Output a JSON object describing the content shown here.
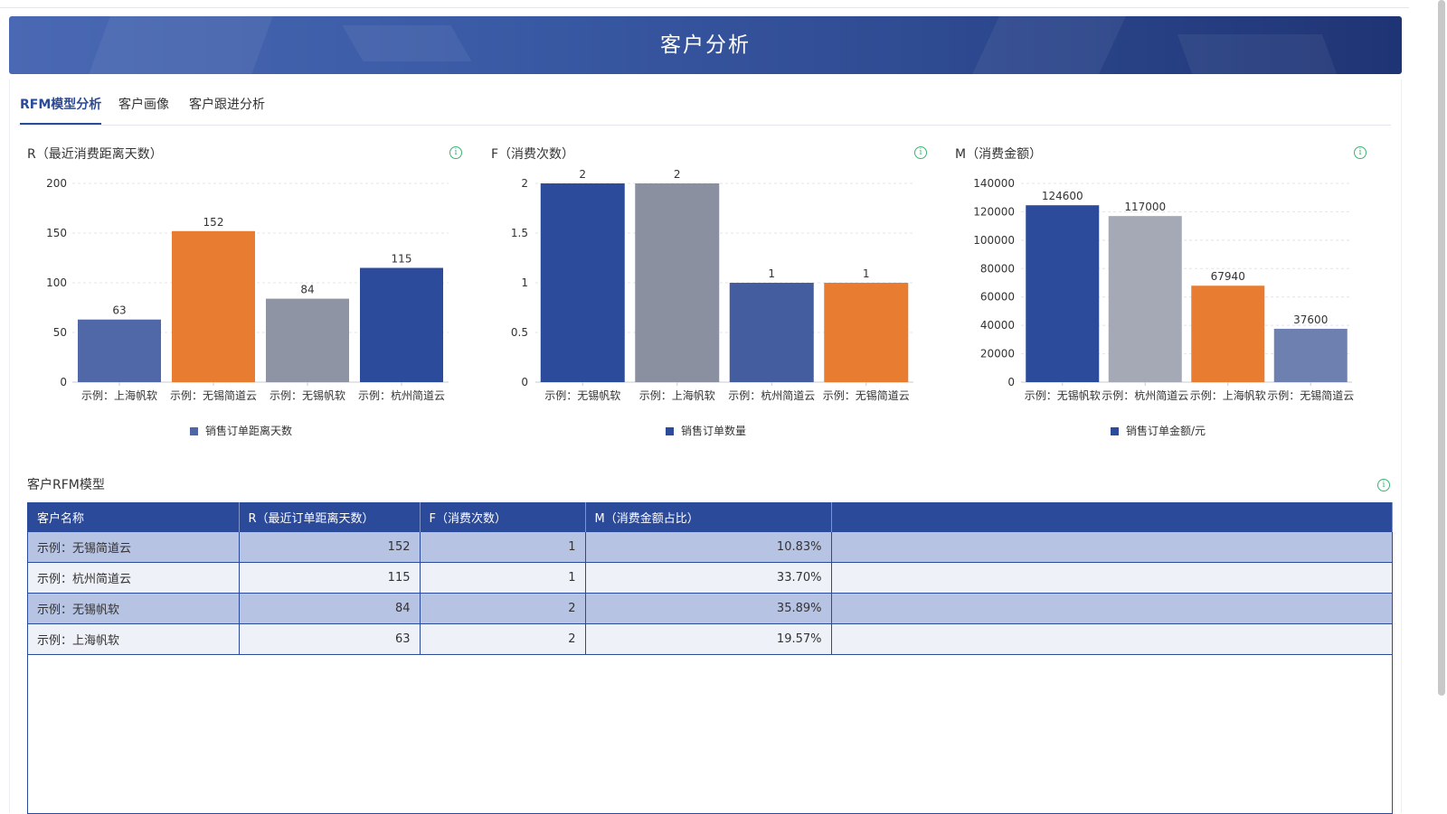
{
  "header": {
    "title": "客户分析"
  },
  "tabs": [
    {
      "label": "RFM模型分析",
      "active": true
    },
    {
      "label": "客户画像",
      "active": false
    },
    {
      "label": "客户跟进分析",
      "active": false
    }
  ],
  "charts": {
    "r": {
      "title": "R（最近消费距离天数）"
    },
    "f": {
      "title": "F（消费次数）"
    },
    "m": {
      "title": "M（消费金额）"
    }
  },
  "chart_data": [
    {
      "type": "bar",
      "title": "R（最近消费距离天数）",
      "categories": [
        "示例：上海帆软",
        "示例：无锡简道云",
        "示例：无锡帆软",
        "示例：杭州简道云"
      ],
      "series": [
        {
          "name": "销售订单距离天数",
          "values": [
            63,
            152,
            84,
            115
          ]
        }
      ],
      "bar_colors": [
        "#5068a8",
        "#e87d32",
        "#8e94a4",
        "#2d4b9b"
      ],
      "legend_color": "#4e66a8",
      "ylim": [
        0,
        200
      ],
      "yticks": [
        0,
        50,
        100,
        150,
        200
      ],
      "ytick_labels": [
        "0",
        "50",
        "100",
        "150",
        "200"
      ],
      "grid": true,
      "legend": "bottom"
    },
    {
      "type": "bar",
      "title": "F（消费次数）",
      "categories": [
        "示例：无锡帆软",
        "示例：上海帆软",
        "示例：杭州简道云",
        "示例：无锡简道云"
      ],
      "series": [
        {
          "name": "销售订单数量",
          "values": [
            2,
            2,
            1,
            1
          ]
        }
      ],
      "bar_colors": [
        "#2d4b9b",
        "#8a90a0",
        "#435d9f",
        "#e87d32"
      ],
      "legend_color": "#2d4b9b",
      "ylim": [
        0,
        2
      ],
      "yticks": [
        0,
        0.5,
        1,
        1.5,
        2
      ],
      "ytick_labels": [
        "0",
        "0.5",
        "1",
        "1.5",
        "2"
      ],
      "grid": true,
      "legend": "bottom"
    },
    {
      "type": "bar",
      "title": "M（消费金额）",
      "categories": [
        "示例：无锡帆软",
        "示例：杭州简道云",
        "示例：上海帆软",
        "示例：无锡简道云"
      ],
      "series": [
        {
          "name": "销售订单金额/元",
          "values": [
            124600,
            117000,
            67940,
            37600
          ]
        }
      ],
      "bar_colors": [
        "#2d4b9b",
        "#a4a9b5",
        "#e87d32",
        "#6d80b0"
      ],
      "legend_color": "#2d4b9b",
      "ylim": [
        0,
        140000
      ],
      "yticks": [
        0,
        20000,
        40000,
        60000,
        80000,
        100000,
        120000,
        140000
      ],
      "ytick_labels": [
        "0",
        "20000",
        "40000",
        "60000",
        "80000",
        "100000",
        "120000",
        "140000"
      ],
      "grid": true,
      "legend": "bottom"
    }
  ],
  "table": {
    "title": "客户RFM模型",
    "columns": [
      "客户名称",
      "R（最近订单距离天数）",
      "F（消费次数）",
      "M（消费金额占比）",
      ""
    ],
    "rows": [
      [
        "示例：无锡简道云",
        "152",
        "1",
        "10.83%",
        ""
      ],
      [
        "示例：杭州简道云",
        "115",
        "1",
        "33.70%",
        ""
      ],
      [
        "示例：无锡帆软",
        "84",
        "2",
        "35.89%",
        ""
      ],
      [
        "示例：上海帆软",
        "63",
        "2",
        "19.57%",
        ""
      ]
    ]
  },
  "colors": {
    "accent": "#2c4a9a",
    "orange": "#e87d32",
    "info": "#3cb371"
  },
  "icons": {
    "info": "info-circle-icon"
  }
}
